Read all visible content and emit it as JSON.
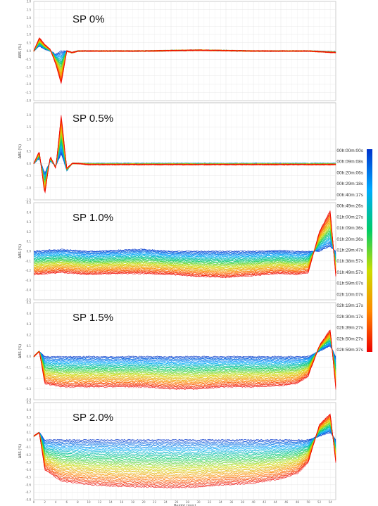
{
  "chart_data": [
    {
      "type": "line",
      "title": "SP 0%",
      "ylabel": "ΔBS (%)",
      "xlabel": "",
      "ylim": [
        -3.0,
        3.0
      ],
      "yticks": [
        "3.0",
        "2.5",
        "2.0",
        "1.5",
        "1.0",
        "0.5",
        "0.0",
        "-0.5",
        "-1.0",
        "-1.5",
        "-2.0",
        "-2.5",
        "-3.0"
      ],
      "grid": true,
      "profile": {
        "x": [
          0,
          1,
          2,
          3,
          4,
          5,
          6,
          7,
          8,
          10,
          20,
          30,
          40,
          50,
          55
        ],
        "early": [
          0.0,
          0.3,
          0.1,
          0.0,
          -0.2,
          0.0,
          0.0,
          -0.1,
          0.0,
          0.0,
          0.0,
          0.05,
          0.0,
          0.0,
          -0.05
        ],
        "late": [
          0.0,
          0.8,
          0.4,
          0.1,
          -0.8,
          -2.0,
          0.0,
          -0.1,
          0.0,
          0.0,
          0.0,
          0.05,
          0.0,
          0.0,
          -0.1
        ]
      }
    },
    {
      "type": "line",
      "title": "SP 0.5%",
      "ylabel": "ΔBS (%)",
      "xlabel": "",
      "ylim": [
        -1.5,
        2.5
      ],
      "yticks": [
        "2.0",
        "1.5",
        "1.0",
        "0.5",
        "0.0",
        "-0.5",
        "-1.0",
        "-1.5"
      ],
      "grid": true,
      "profile": {
        "x": [
          0,
          1,
          2,
          3,
          4,
          5,
          6,
          7,
          8,
          10,
          20,
          30,
          40,
          50,
          55
        ],
        "early": [
          0.0,
          0.2,
          -0.4,
          0.1,
          -0.1,
          0.4,
          -0.3,
          0.0,
          0.0,
          0.0,
          0.0,
          0.0,
          0.0,
          0.0,
          0.0
        ],
        "late": [
          0.0,
          0.5,
          -1.3,
          0.3,
          -0.2,
          2.0,
          -0.2,
          0.0,
          0.0,
          -0.05,
          -0.05,
          -0.05,
          -0.05,
          -0.05,
          -0.05
        ]
      }
    },
    {
      "type": "line",
      "title": "SP 1.0%",
      "ylabel": "ΔBS (%)",
      "xlabel": "",
      "ylim": [
        -0.5,
        0.5
      ],
      "yticks": [
        "0.5",
        "0.4",
        "0.3",
        "0.2",
        "0.1",
        "0.0",
        "-0.1",
        "-0.2",
        "-0.3",
        "-0.4",
        "-0.5"
      ],
      "grid": true,
      "profile": {
        "x": [
          0,
          5,
          10,
          15,
          20,
          25,
          30,
          35,
          40,
          45,
          48,
          50,
          52,
          54,
          55
        ],
        "early": [
          0.0,
          0.02,
          0.0,
          0.01,
          0.02,
          0.0,
          0.0,
          0.0,
          0.0,
          0.01,
          0.0,
          0.0,
          0.0,
          0.05,
          0.0
        ],
        "late": [
          -0.24,
          -0.22,
          -0.24,
          -0.23,
          -0.23,
          -0.24,
          -0.26,
          -0.27,
          -0.25,
          -0.23,
          -0.24,
          -0.22,
          0.2,
          0.42,
          -0.26
        ]
      }
    },
    {
      "type": "line",
      "title": "SP 1.5%",
      "ylabel": "ΔBS (%)",
      "xlabel": "",
      "ylim": [
        -0.4,
        0.5
      ],
      "yticks": [
        "0.5",
        "0.4",
        "0.3",
        "0.2",
        "0.1",
        "0.0",
        "-0.1",
        "-0.2",
        "-0.3",
        "-0.4"
      ],
      "grid": true,
      "profile": {
        "x": [
          0,
          1,
          2,
          5,
          10,
          15,
          20,
          25,
          30,
          35,
          40,
          45,
          48,
          50,
          52,
          54,
          55
        ],
        "early": [
          0.0,
          0.05,
          0.0,
          0.0,
          0.0,
          0.0,
          0.0,
          0.0,
          0.0,
          0.0,
          0.0,
          0.0,
          0.0,
          0.0,
          0.05,
          0.1,
          0.0
        ],
        "late": [
          0.0,
          0.05,
          -0.25,
          -0.28,
          -0.28,
          -0.28,
          -0.28,
          -0.3,
          -0.3,
          -0.28,
          -0.28,
          -0.27,
          -0.25,
          -0.18,
          0.1,
          0.25,
          -0.3
        ]
      }
    },
    {
      "type": "line",
      "title": "SP 2.0%",
      "ylabel": "ΔBS (%)",
      "xlabel": "Height (mm)",
      "ylim": [
        -0.8,
        0.5
      ],
      "yticks": [
        "0.5",
        "0.4",
        "0.3",
        "0.2",
        "0.1",
        "0.0",
        "-0.1",
        "-0.2",
        "-0.3",
        "-0.4",
        "-0.5",
        "-0.6",
        "-0.7",
        "-0.8"
      ],
      "grid": true,
      "profile": {
        "x": [
          0,
          1,
          2,
          5,
          10,
          15,
          20,
          25,
          30,
          35,
          40,
          45,
          48,
          50,
          52,
          54,
          55
        ],
        "early": [
          0.05,
          0.1,
          0.0,
          0.0,
          0.0,
          0.0,
          0.0,
          0.0,
          0.0,
          0.0,
          0.0,
          0.0,
          0.0,
          0.0,
          0.05,
          0.1,
          0.0
        ],
        "late": [
          0.05,
          0.1,
          -0.4,
          -0.55,
          -0.6,
          -0.62,
          -0.63,
          -0.64,
          -0.63,
          -0.6,
          -0.58,
          -0.52,
          -0.45,
          -0.3,
          0.2,
          0.35,
          -0.3
        ]
      }
    }
  ],
  "legend": {
    "gradient": [
      "#0033cc",
      "#00aaff",
      "#00cc66",
      "#ccdd00",
      "#ff8800",
      "#ee0000"
    ],
    "entries": [
      "00h:00m:00s",
      "00h:09m:08s",
      "00h:20m:06s",
      "00h:29m:18s",
      "00h:40m:17s",
      "00h:49m:26s",
      "01h:00m:27s",
      "01h:09m:36s",
      "01h:20m:36s",
      "01h:29m:47s",
      "01h:38m:57s",
      "01h:49m:57s",
      "01h:59m:07s",
      "02h:10m:07s",
      "02h:19m:17s",
      "02h:30m:17s",
      "02h:39m:27s",
      "02h:50m:27s",
      "02h:59m:37s"
    ]
  }
}
